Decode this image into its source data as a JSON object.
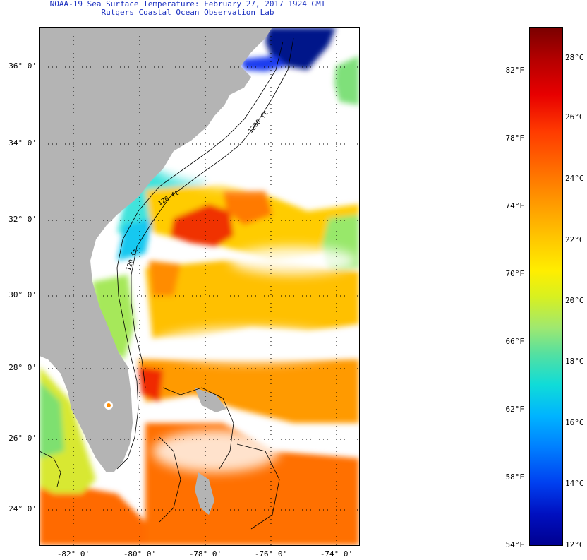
{
  "title": {
    "line1": "NOAA-19 Sea Surface Temperature:  February 27, 2017 1924 GMT",
    "line2": "Rutgers Coastal Ocean Observation Lab"
  },
  "axes": {
    "latitude_labels": [
      "36° 0'",
      "34° 0'",
      "32° 0'",
      "30° 0'",
      "28° 0'",
      "26° 0'",
      "24° 0'"
    ],
    "longitude_labels": [
      "-82° 0'",
      "-80° 0'",
      "-78° 0'",
      "-76° 0'",
      "-74° 0'"
    ]
  },
  "map_annotations": {
    "isobath_label_1": "120 ft",
    "isobath_label_2": "120 ft",
    "isobath_label_3": "1200 ft"
  },
  "colorbar": {
    "fahrenheit_labels": [
      "82°F",
      "78°F",
      "74°F",
      "70°F",
      "66°F",
      "62°F",
      "58°F",
      "54°F"
    ],
    "celsius_labels": [
      "28°C",
      "26°C",
      "24°C",
      "22°C",
      "20°C",
      "18°C",
      "16°C",
      "14°C",
      "12°C"
    ]
  },
  "colors": {
    "land": "#b4b4b4",
    "cloud": "#ffffff",
    "accent_title": "#1a2fbf"
  }
}
